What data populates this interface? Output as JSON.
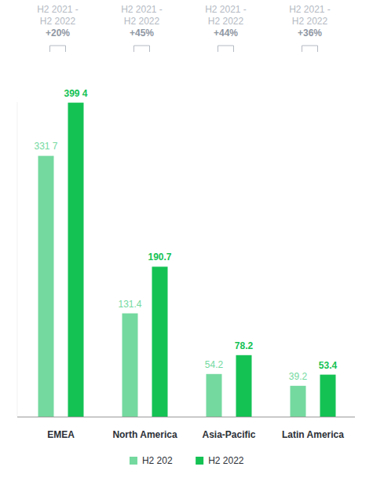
{
  "chart_data": {
    "type": "bar",
    "categories": [
      "EMEA",
      "North America",
      "Asia-Pacific",
      "Latin America"
    ],
    "series": [
      {
        "name": "H2 202",
        "color": "#74d99f",
        "values": [
          331.7,
          131.4,
          54.2,
          39.2
        ],
        "value_labels": [
          "331 7",
          "131.4",
          "54.2",
          "39.2"
        ]
      },
      {
        "name": "H2 2022",
        "color": "#14c254",
        "values": [
          399.4,
          190.7,
          78.2,
          53.4
        ],
        "value_labels": [
          "399 4",
          "190.7",
          "78.2",
          "53.4"
        ]
      }
    ],
    "annotations": [
      {
        "lines": [
          "H2 2021 -",
          "H2 2022"
        ],
        "change": "+20%"
      },
      {
        "lines": [
          "H2 2021 -",
          "H2 2022"
        ],
        "change": "+45%"
      },
      {
        "lines": [
          "H2 2021 -",
          "H2 2022"
        ],
        "change": "+44%"
      },
      {
        "lines": [
          "H2 2021 -",
          "H2 2022"
        ],
        "change": "+36%"
      }
    ],
    "ylim": [
      0,
      400
    ],
    "yticks": [],
    "grid": false,
    "legend": "bottom",
    "data_labels": true,
    "tick_labels": "x"
  }
}
